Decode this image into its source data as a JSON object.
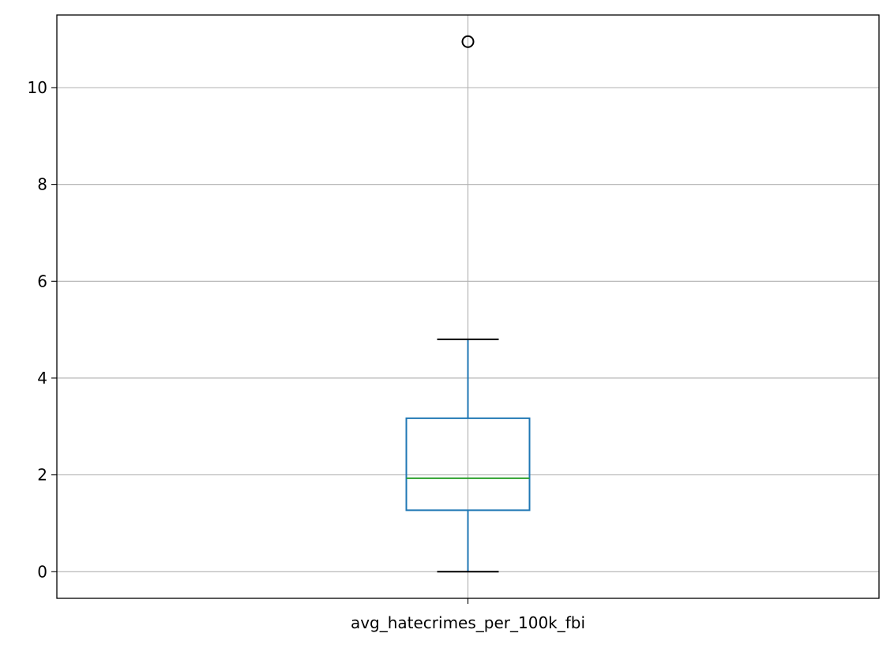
{
  "chart_data": {
    "type": "box",
    "title": "",
    "xlabel": "",
    "ylabel": "",
    "categories": [
      "avg_hatecrimes_per_100k_fbi"
    ],
    "series": [
      {
        "whisker_low": 0.0,
        "q1": 1.27,
        "median": 1.93,
        "q3": 3.17,
        "whisker_high": 4.8,
        "outliers": [
          10.95
        ]
      }
    ],
    "ylim": [
      -0.55,
      11.5
    ],
    "yticks": [
      0,
      2,
      4,
      6,
      8,
      10
    ],
    "grid": true,
    "legend": "none",
    "colors": {
      "box": "#1f77b4",
      "median": "#2ca02c",
      "whisker_cap": "#000000",
      "outlier": "#000000",
      "grid": "#b0b0b0",
      "axes": "#000000"
    }
  }
}
